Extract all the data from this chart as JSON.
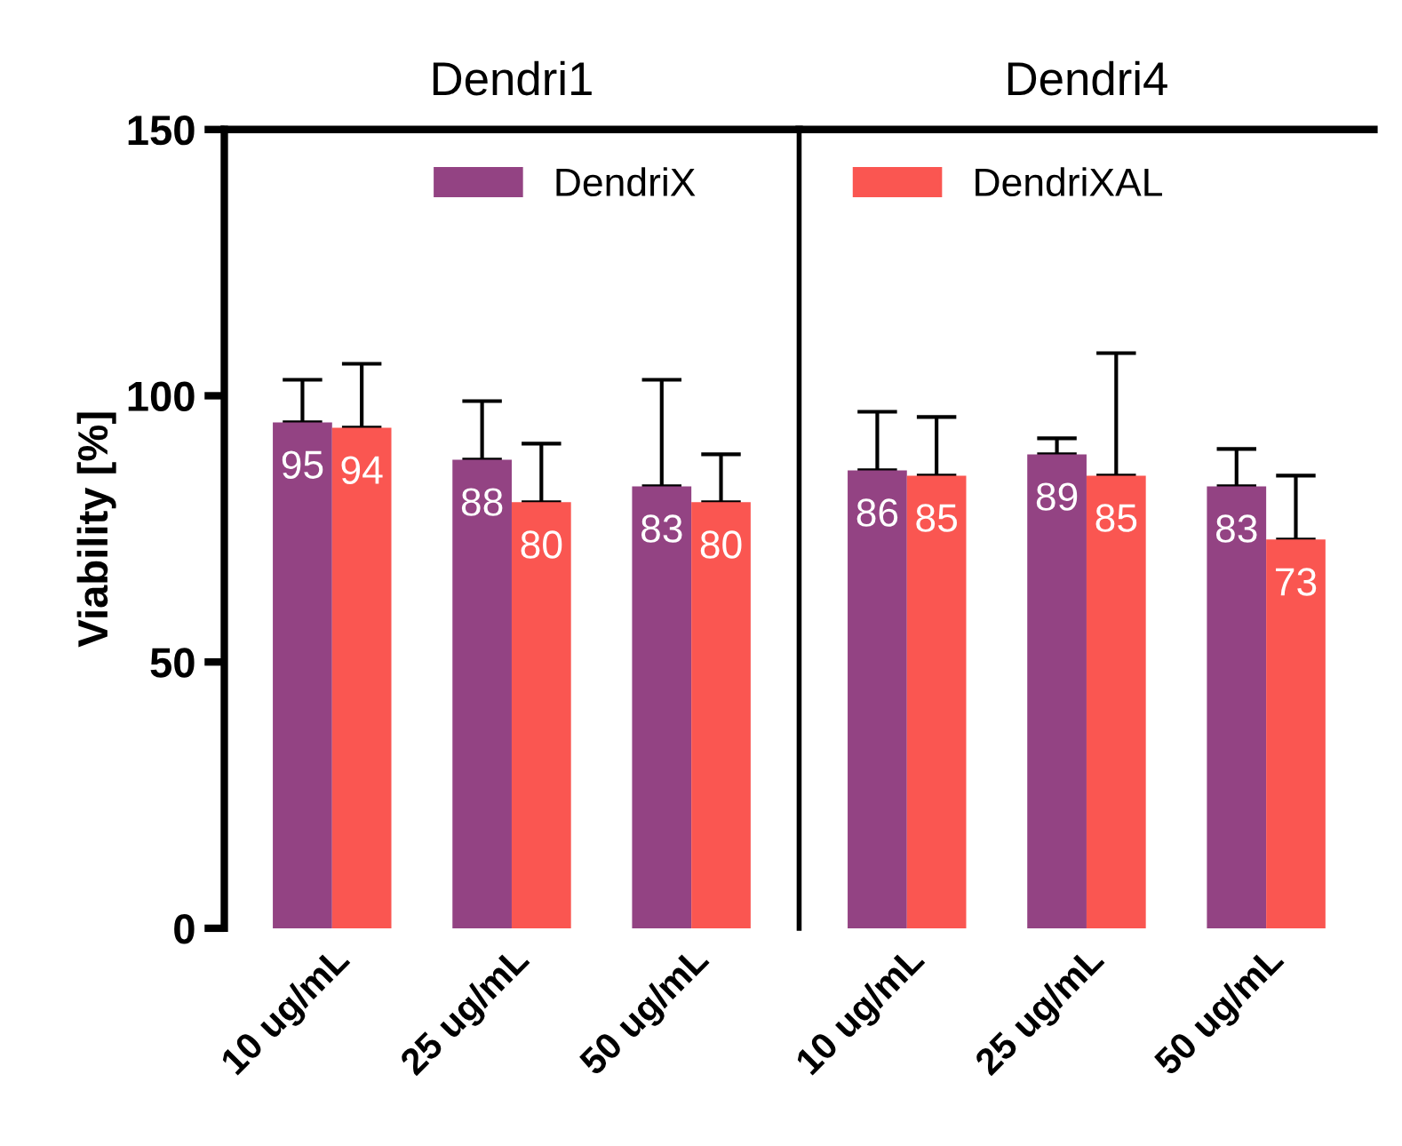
{
  "chart_data": [
    {
      "type": "bar",
      "title": "Dendri1",
      "ylabel": "Viability [%]",
      "categories": [
        "10 ug/mL",
        "25 ug/mL",
        "50 ug/mL"
      ],
      "ylim": [
        0,
        150
      ],
      "yticks": [
        0,
        50,
        100,
        150
      ],
      "grid": false,
      "legend": "top",
      "data_labels": true,
      "series": [
        {
          "name": "DendriX",
          "color": "#934383",
          "values": [
            95,
            88,
            83
          ],
          "errors": [
            [
              95,
              103
            ],
            [
              88,
              99
            ],
            [
              83,
              103
            ]
          ]
        },
        {
          "name": "DendriXAL",
          "color": "#fa5651",
          "values": [
            94,
            80,
            80
          ],
          "errors": [
            [
              94,
              106
            ],
            [
              80,
              91
            ],
            [
              80,
              89
            ]
          ]
        }
      ]
    },
    {
      "type": "bar",
      "title": "Dendri4",
      "categories": [
        "10 ug/mL",
        "25 ug/mL",
        "50 ug/mL"
      ],
      "ylim": [
        0,
        150
      ],
      "tick_labels": "x",
      "grid": false,
      "data_labels": true,
      "series": [
        {
          "color": "#934383",
          "values": [
            86,
            89,
            83
          ],
          "errors": [
            [
              86,
              97
            ],
            [
              89,
              92
            ],
            [
              83,
              90
            ]
          ]
        },
        {
          "color": "#fa5651",
          "values": [
            85,
            85,
            73
          ],
          "errors": [
            [
              85,
              96
            ],
            [
              85,
              108
            ],
            [
              73,
              85
            ]
          ]
        }
      ]
    }
  ]
}
